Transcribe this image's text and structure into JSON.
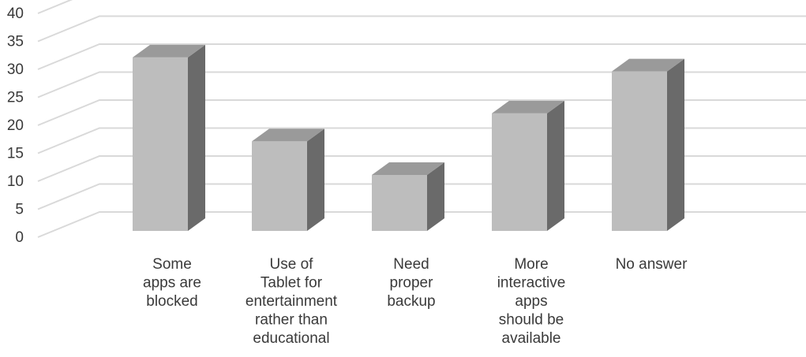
{
  "chart_data": {
    "type": "bar",
    "style": "3d-column",
    "title": "",
    "xlabel": "",
    "ylabel": "",
    "ylim": [
      0,
      40
    ],
    "yticks": [
      "0",
      "5",
      "10",
      "15",
      "20",
      "25",
      "30",
      "35",
      "40"
    ],
    "grid": true,
    "legend": "none",
    "categories": [
      [
        "Some",
        "apps are",
        "blocked"
      ],
      [
        "Use of",
        "Tablet for",
        "entertainment",
        "rather than",
        "educational"
      ],
      [
        "Need",
        "proper",
        "backup"
      ],
      [
        "More",
        "interactive",
        "apps",
        "should be",
        "available"
      ],
      [
        "No answer"
      ]
    ],
    "values": [
      31,
      16,
      10,
      21,
      28.5
    ],
    "colors": {
      "front": "#bdbdbd",
      "top": "#9a9a9a",
      "side": "#6a6a6a",
      "grid": "#d9d9d9",
      "text": "#3a3a3a"
    }
  }
}
